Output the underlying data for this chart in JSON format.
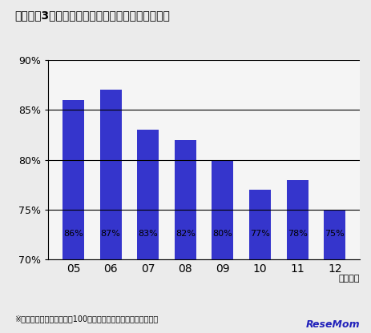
{
  "title": "》グラフ3》前期志願者に対する後期志願者の割合",
  "title_raw": "【グラフ3】前期志願者に対する後期志願者の割合",
  "categories": [
    "05",
    "06",
    "07",
    "08",
    "09",
    "10",
    "11",
    "12"
  ],
  "values": [
    86,
    87,
    83,
    82,
    80,
    77,
    78,
    75
  ],
  "bar_color": "#3535cc",
  "ylim": [
    70,
    90
  ],
  "yticks": [
    70,
    75,
    80,
    85,
    90
  ],
  "ytick_labels": [
    "70%",
    "75%",
    "80%",
    "85%",
    "90%"
  ],
  "xlabel": "（年度）",
  "footnote": "※グラフは前期志願者数を100としたときの後期志願者数の割合",
  "resemom": "ReseMom",
  "background_color": "#ebebeb",
  "plot_bg_color": "#f5f5f5"
}
